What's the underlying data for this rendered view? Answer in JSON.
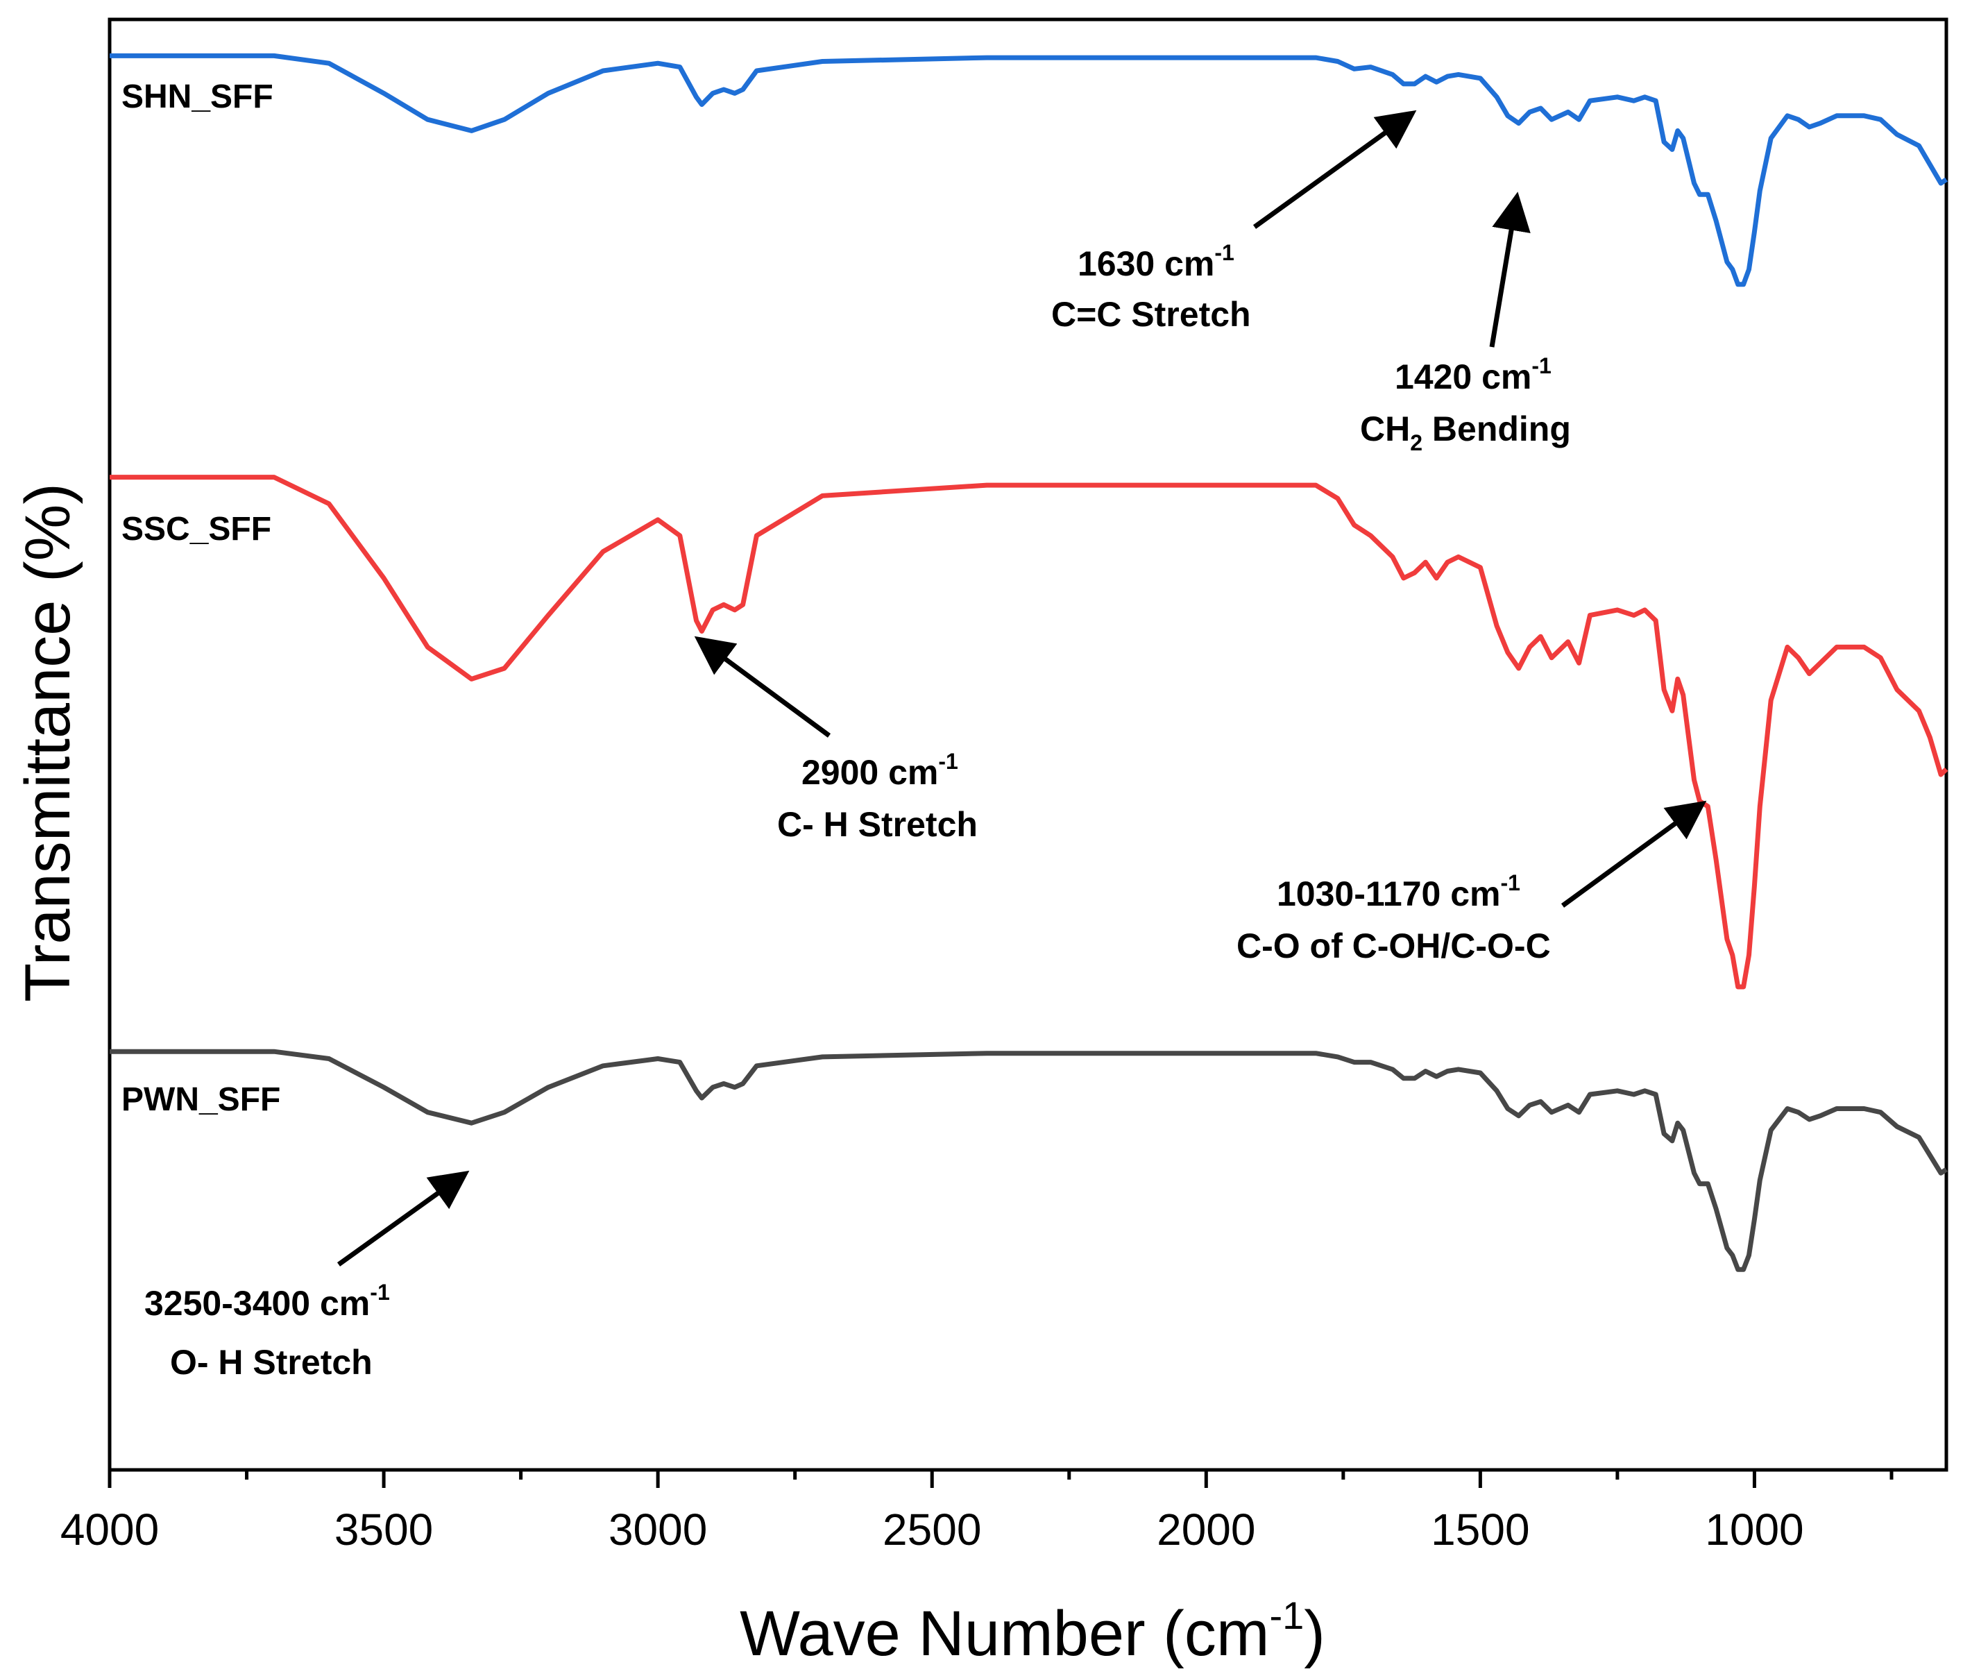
{
  "chart_data": {
    "type": "line",
    "title": "",
    "xlabel": "Wave Number (cm-1)",
    "xlabel_parts": {
      "main": "Wave Number (cm",
      "sup": "-1",
      "close": ")"
    },
    "ylabel": "Transmittance (%)",
    "xlim": [
      4000,
      650
    ],
    "x_reversed": true,
    "x_ticks": [
      4000,
      3500,
      3000,
      2500,
      2000,
      1500,
      1000
    ],
    "x_minor_step": 250,
    "y_ticks_shown": false,
    "grid": false,
    "colors": {
      "SHN_SFF": "#1f6fd6",
      "SSC_SFF": "#f03c3c",
      "PWN_SFF": "#474747",
      "axis": "#000000",
      "arrow": "#000000"
    },
    "series": [
      {
        "name": "SHN_SFF",
        "color": "#1f6fd6",
        "points": [
          [
            4000,
            99
          ],
          [
            3700,
            99
          ],
          [
            3600,
            97
          ],
          [
            3500,
            89
          ],
          [
            3420,
            82
          ],
          [
            3340,
            79
          ],
          [
            3280,
            82
          ],
          [
            3200,
            89
          ],
          [
            3100,
            95
          ],
          [
            3000,
            97
          ],
          [
            2960,
            96
          ],
          [
            2930,
            88
          ],
          [
            2920,
            86
          ],
          [
            2900,
            89
          ],
          [
            2880,
            90
          ],
          [
            2860,
            89
          ],
          [
            2845,
            90
          ],
          [
            2820,
            95
          ],
          [
            2700,
            97.5
          ],
          [
            2400,
            98.5
          ],
          [
            2000,
            98.5
          ],
          [
            1800,
            98.5
          ],
          [
            1760,
            97.5
          ],
          [
            1730,
            95.5
          ],
          [
            1700,
            96
          ],
          [
            1660,
            94
          ],
          [
            1640,
            91.5
          ],
          [
            1620,
            91.5
          ],
          [
            1600,
            93.5
          ],
          [
            1580,
            92
          ],
          [
            1560,
            93.5
          ],
          [
            1540,
            94
          ],
          [
            1500,
            93
          ],
          [
            1470,
            88
          ],
          [
            1450,
            83
          ],
          [
            1430,
            81
          ],
          [
            1410,
            84
          ],
          [
            1390,
            85
          ],
          [
            1370,
            82
          ],
          [
            1340,
            84
          ],
          [
            1320,
            82
          ],
          [
            1300,
            87
          ],
          [
            1250,
            88
          ],
          [
            1220,
            87
          ],
          [
            1200,
            88
          ],
          [
            1180,
            87
          ],
          [
            1165,
            76
          ],
          [
            1150,
            74
          ],
          [
            1140,
            79
          ],
          [
            1130,
            77
          ],
          [
            1110,
            65
          ],
          [
            1100,
            62
          ],
          [
            1085,
            62
          ],
          [
            1070,
            55
          ],
          [
            1050,
            44
          ],
          [
            1040,
            42
          ],
          [
            1030,
            38
          ],
          [
            1020,
            38
          ],
          [
            1010,
            42
          ],
          [
            1000,
            52
          ],
          [
            990,
            63
          ],
          [
            970,
            77
          ],
          [
            940,
            83
          ],
          [
            920,
            82
          ],
          [
            900,
            80
          ],
          [
            880,
            81
          ],
          [
            850,
            83
          ],
          [
            800,
            83
          ],
          [
            770,
            82
          ],
          [
            740,
            78
          ],
          [
            700,
            75
          ],
          [
            680,
            70
          ],
          [
            660,
            65
          ],
          [
            650,
            66
          ]
        ]
      },
      {
        "name": "SSC_SFF",
        "color": "#f03c3c",
        "points": [
          [
            4000,
            99
          ],
          [
            3700,
            99
          ],
          [
            3600,
            94
          ],
          [
            3500,
            80
          ],
          [
            3420,
            67
          ],
          [
            3340,
            61
          ],
          [
            3280,
            63
          ],
          [
            3200,
            73
          ],
          [
            3100,
            85
          ],
          [
            3000,
            91
          ],
          [
            2960,
            88
          ],
          [
            2930,
            72
          ],
          [
            2920,
            70
          ],
          [
            2900,
            74
          ],
          [
            2880,
            75
          ],
          [
            2860,
            74
          ],
          [
            2845,
            75
          ],
          [
            2820,
            88
          ],
          [
            2700,
            95.5
          ],
          [
            2400,
            97.5
          ],
          [
            2000,
            97.5
          ],
          [
            1800,
            97.5
          ],
          [
            1760,
            95
          ],
          [
            1730,
            90
          ],
          [
            1700,
            88
          ],
          [
            1660,
            84
          ],
          [
            1640,
            80
          ],
          [
            1620,
            81
          ],
          [
            1600,
            83
          ],
          [
            1580,
            80
          ],
          [
            1560,
            83
          ],
          [
            1540,
            84
          ],
          [
            1500,
            82
          ],
          [
            1470,
            71
          ],
          [
            1450,
            66
          ],
          [
            1430,
            63
          ],
          [
            1410,
            67
          ],
          [
            1390,
            69
          ],
          [
            1370,
            65
          ],
          [
            1340,
            68
          ],
          [
            1320,
            64
          ],
          [
            1300,
            73
          ],
          [
            1250,
            74
          ],
          [
            1220,
            73
          ],
          [
            1200,
            74
          ],
          [
            1180,
            72
          ],
          [
            1165,
            59
          ],
          [
            1150,
            55
          ],
          [
            1140,
            61
          ],
          [
            1130,
            58
          ],
          [
            1110,
            42
          ],
          [
            1100,
            38
          ],
          [
            1085,
            37
          ],
          [
            1070,
            27
          ],
          [
            1050,
            12
          ],
          [
            1040,
            9
          ],
          [
            1030,
            3
          ],
          [
            1020,
            3
          ],
          [
            1010,
            9
          ],
          [
            1000,
            22
          ],
          [
            990,
            37
          ],
          [
            970,
            57
          ],
          [
            940,
            67
          ],
          [
            920,
            65
          ],
          [
            900,
            62
          ],
          [
            880,
            64
          ],
          [
            850,
            67
          ],
          [
            800,
            67
          ],
          [
            770,
            65
          ],
          [
            740,
            59
          ],
          [
            700,
            55
          ],
          [
            680,
            50
          ],
          [
            660,
            43
          ],
          [
            650,
            44
          ]
        ]
      },
      {
        "name": "PWN_SFF",
        "color": "#474747",
        "points": [
          [
            4000,
            99
          ],
          [
            3700,
            99
          ],
          [
            3600,
            97
          ],
          [
            3500,
            89
          ],
          [
            3420,
            82
          ],
          [
            3340,
            79
          ],
          [
            3280,
            82
          ],
          [
            3200,
            89
          ],
          [
            3100,
            95
          ],
          [
            3000,
            97
          ],
          [
            2960,
            96
          ],
          [
            2930,
            88
          ],
          [
            2920,
            86
          ],
          [
            2900,
            89
          ],
          [
            2880,
            90
          ],
          [
            2860,
            89
          ],
          [
            2845,
            90
          ],
          [
            2820,
            95
          ],
          [
            2700,
            97.5
          ],
          [
            2400,
            98.5
          ],
          [
            2000,
            98.5
          ],
          [
            1800,
            98.5
          ],
          [
            1760,
            97.5
          ],
          [
            1730,
            96
          ],
          [
            1700,
            96
          ],
          [
            1660,
            94
          ],
          [
            1640,
            91.5
          ],
          [
            1620,
            91.5
          ],
          [
            1600,
            93.5
          ],
          [
            1580,
            92
          ],
          [
            1560,
            93.5
          ],
          [
            1540,
            94
          ],
          [
            1500,
            93
          ],
          [
            1470,
            88
          ],
          [
            1450,
            83
          ],
          [
            1430,
            81
          ],
          [
            1410,
            84
          ],
          [
            1390,
            85
          ],
          [
            1370,
            82
          ],
          [
            1340,
            84
          ],
          [
            1320,
            82
          ],
          [
            1300,
            87
          ],
          [
            1250,
            88
          ],
          [
            1220,
            87
          ],
          [
            1200,
            88
          ],
          [
            1180,
            87
          ],
          [
            1165,
            76
          ],
          [
            1150,
            74
          ],
          [
            1140,
            79
          ],
          [
            1130,
            77
          ],
          [
            1110,
            65
          ],
          [
            1100,
            62
          ],
          [
            1085,
            62
          ],
          [
            1070,
            55
          ],
          [
            1050,
            44
          ],
          [
            1040,
            42
          ],
          [
            1030,
            38
          ],
          [
            1020,
            38
          ],
          [
            1010,
            42
          ],
          [
            1000,
            52
          ],
          [
            990,
            63
          ],
          [
            970,
            77
          ],
          [
            940,
            83
          ],
          [
            920,
            82
          ],
          [
            900,
            80
          ],
          [
            880,
            81
          ],
          [
            850,
            83
          ],
          [
            800,
            83
          ],
          [
            770,
            82
          ],
          [
            740,
            78
          ],
          [
            700,
            75
          ],
          [
            680,
            70
          ],
          [
            660,
            65
          ],
          [
            650,
            66
          ]
        ]
      }
    ],
    "annotations": [
      {
        "key": "oh",
        "lines": [
          "3250-3400 cm-1",
          "O- H Stretch"
        ],
        "line1_main": "3250-3400 cm",
        "line1_sup": "-1",
        "line2": "O- H Stretch",
        "target_series": "PWN_SFF",
        "target_x": 3340
      },
      {
        "key": "ch",
        "lines": [
          "2900 cm-1",
          "C- H Stretch"
        ],
        "line1_main": "2900 cm",
        "line1_sup": "-1",
        "line2": "C- H Stretch",
        "target_series": "SSC_SFF",
        "target_x": 2915
      },
      {
        "key": "cc",
        "lines": [
          "1630 cm-1",
          "C=C Stretch"
        ],
        "line1_main": "1630 cm",
        "line1_sup": "-1",
        "line2": "C=C Stretch",
        "target_series": "SHN_SFF",
        "target_x": 1630
      },
      {
        "key": "ch2",
        "lines": [
          "1420 cm-1",
          "CH2 Bending"
        ],
        "line1_main": "1420 cm",
        "line1_sup": "-1",
        "line2_main": "CH",
        "line2_sub": "2",
        "line2_rest": " Bending",
        "target_series": "SHN_SFF",
        "target_x": 1430
      },
      {
        "key": "co",
        "lines": [
          "1030-1170 cm-1",
          "C-O of C-OH/C-O-C"
        ],
        "line1_main": "1030-1170 cm",
        "line1_sup": "-1",
        "line2": "C-O of C-OH/C-O-C",
        "target_series": "SSC_SFF",
        "target_x": 1100
      }
    ]
  }
}
